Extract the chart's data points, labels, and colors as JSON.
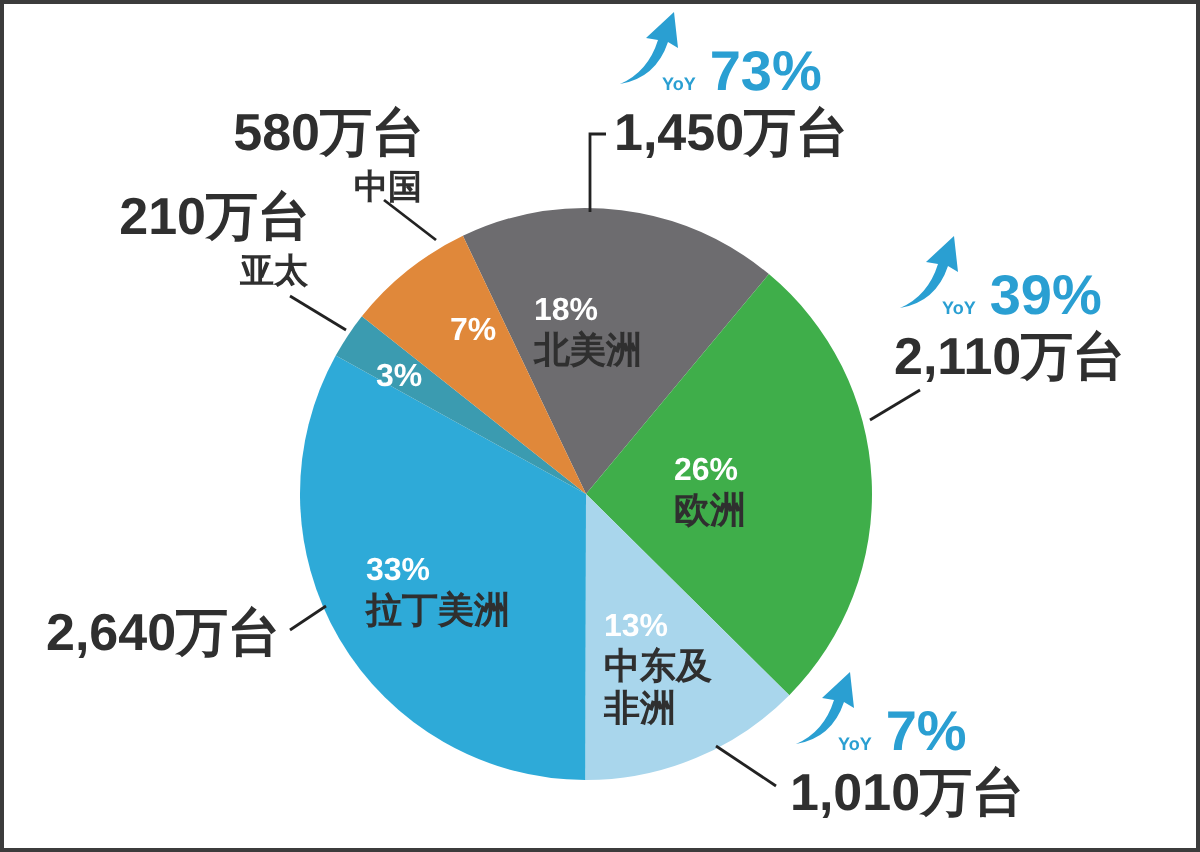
{
  "chart_data": {
    "type": "pie",
    "categories": [
      "北美洲",
      "欧洲",
      "中东及非洲",
      "拉丁美洲",
      "亚太",
      "中国"
    ],
    "values": [
      1450,
      2110,
      1010,
      2640,
      210,
      580
    ],
    "colors": [
      "#6d6c6f",
      "#3fae4a",
      "#a9d6ec",
      "#2eaad8",
      "#3b9bb0",
      "#e0883a"
    ],
    "value_labels": [
      "1,450万台",
      "2,110万台",
      "1,010万台",
      "2,640万台",
      "210万台",
      "580万台"
    ],
    "annotations": [
      {
        "text": "18%",
        "x": "北美洲"
      },
      {
        "text": "26%",
        "x": "欧洲"
      },
      {
        "text": "13%",
        "x": "中东及非洲"
      },
      {
        "text": "33%",
        "x": "拉丁美洲"
      },
      {
        "text": "3%",
        "x": "亚太"
      },
      {
        "text": "7%",
        "x": "中国"
      },
      {
        "text": "YoY 73%",
        "x": "北美洲"
      },
      {
        "text": "YoY 39%",
        "x": "欧洲"
      },
      {
        "text": "YoY 7%",
        "x": "中东及非洲"
      }
    ]
  }
}
